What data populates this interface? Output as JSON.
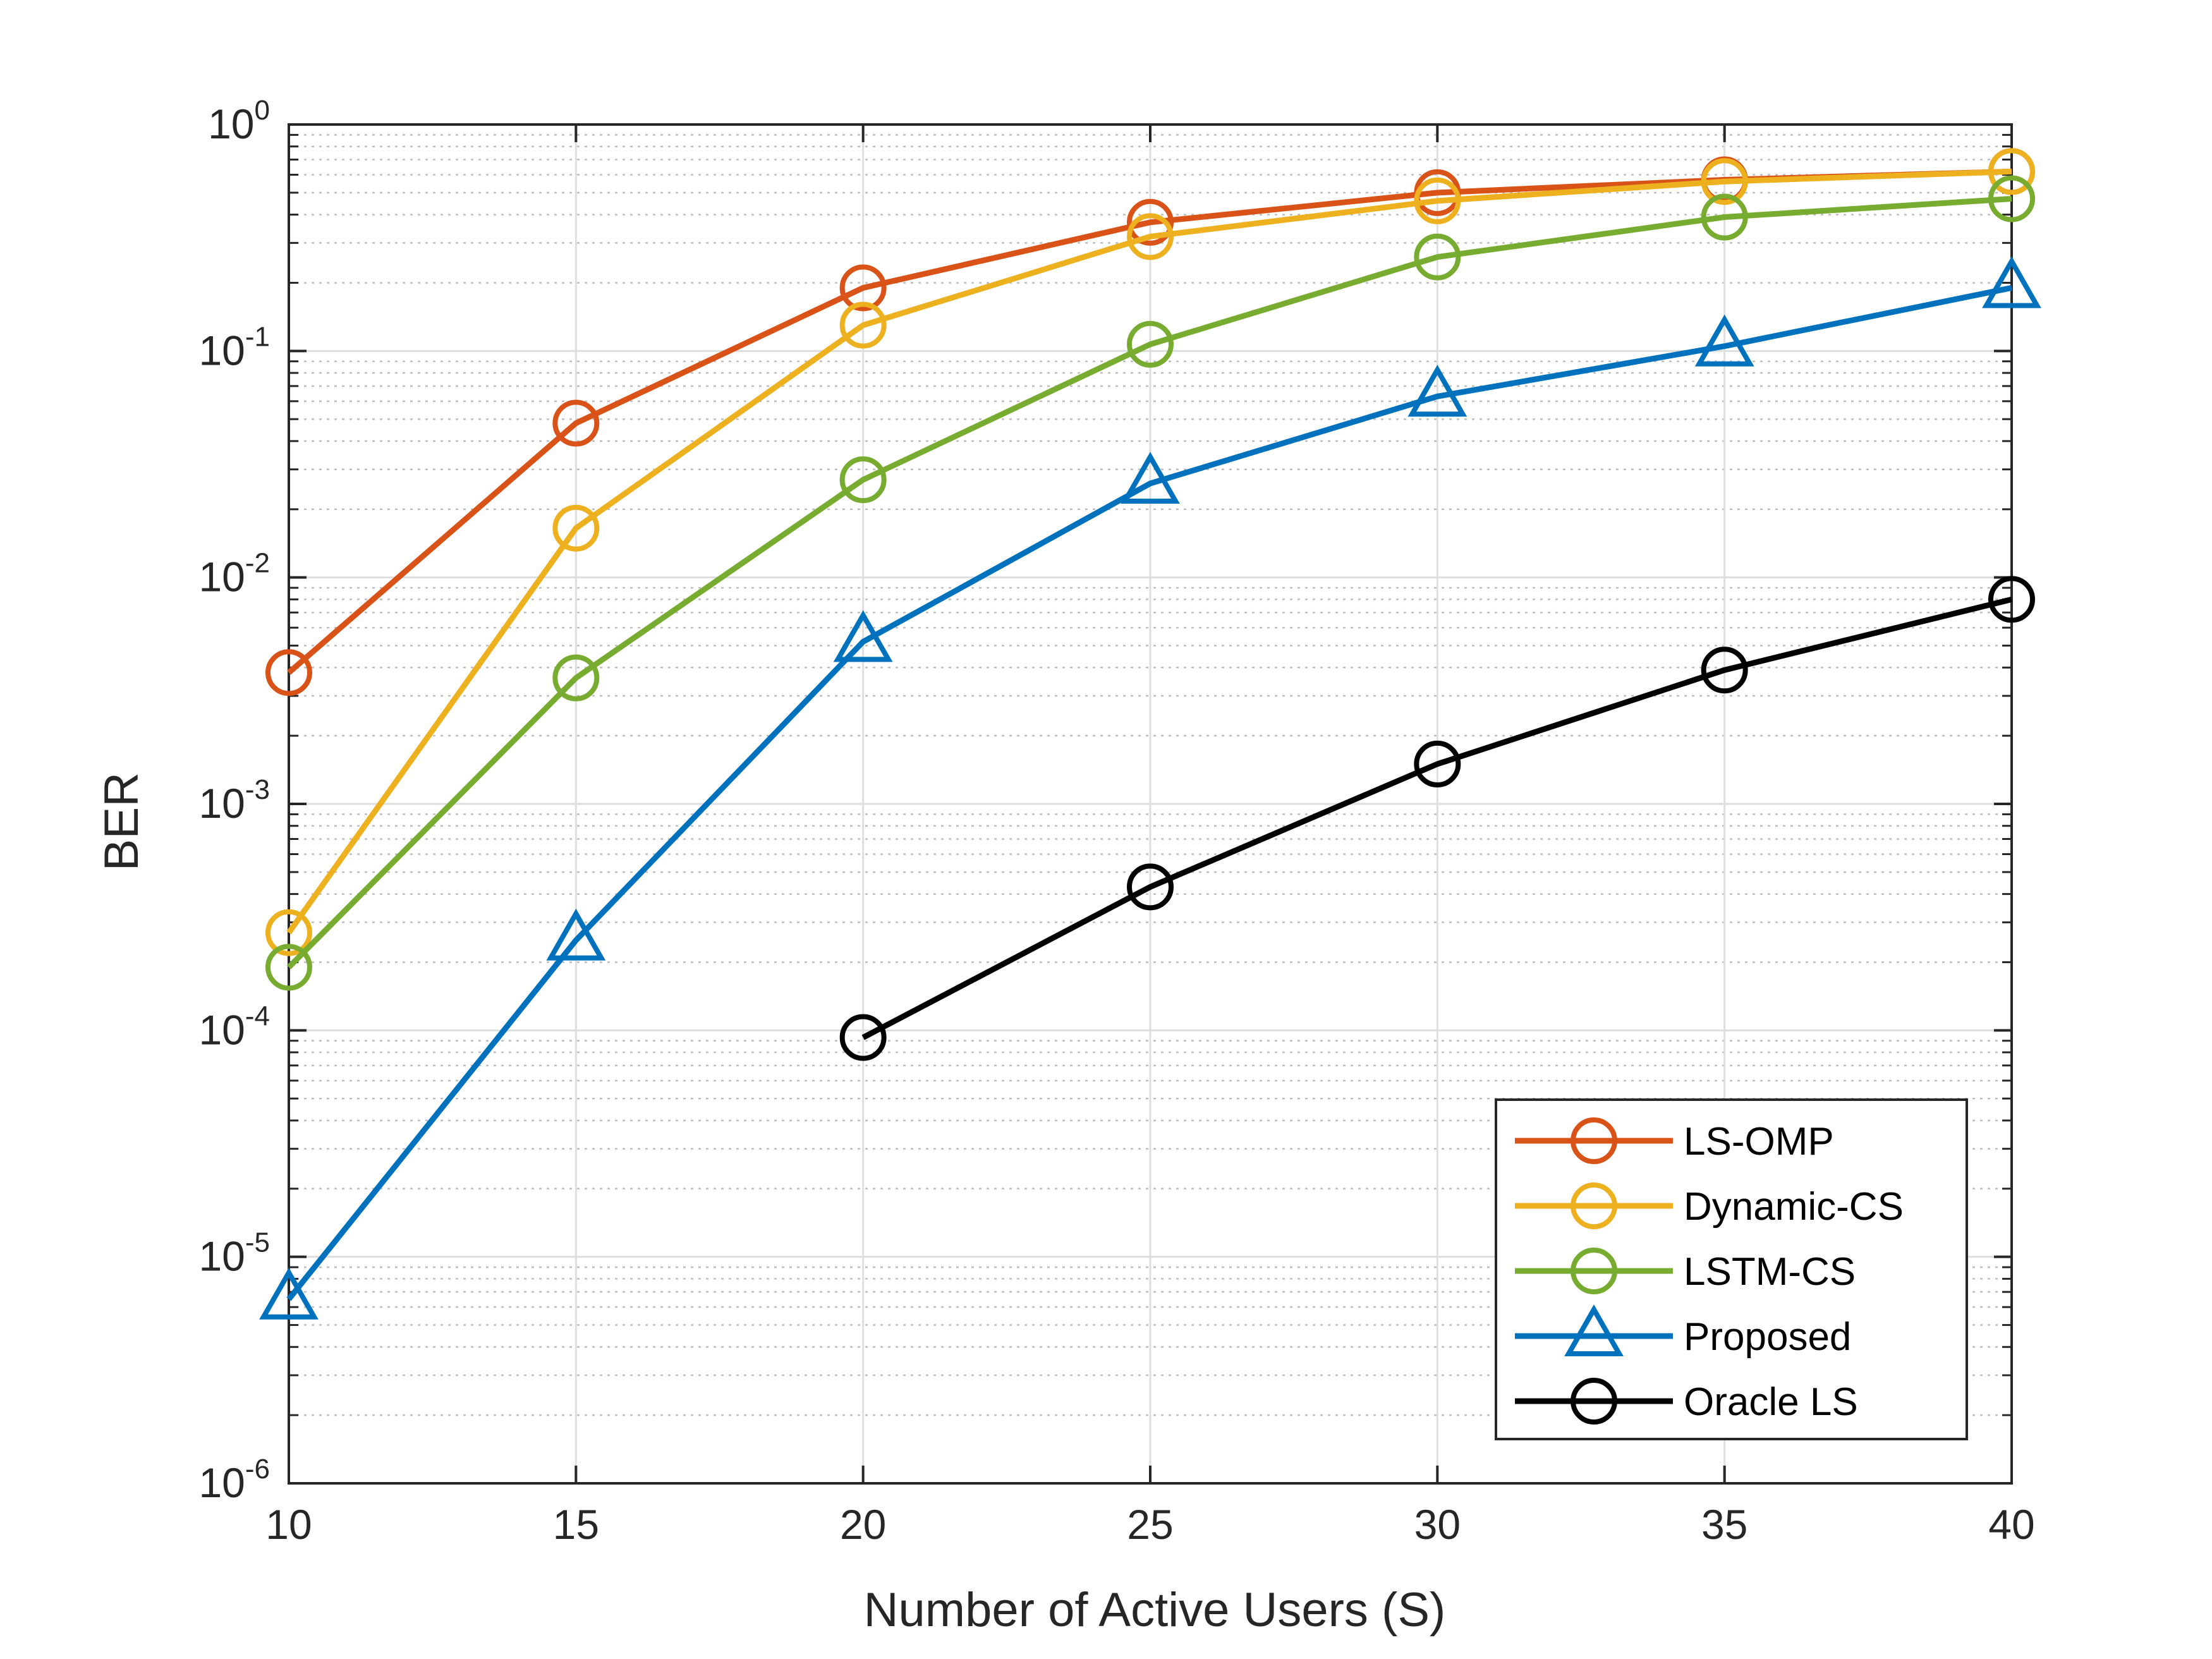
{
  "chart_data": {
    "type": "line",
    "title": "",
    "xlabel": "Number of Active Users (S)",
    "ylabel": "BER",
    "x": [
      10,
      15,
      20,
      25,
      30,
      35,
      40
    ],
    "xlim": [
      10,
      40
    ],
    "ylim": [
      1e-06,
      1
    ],
    "yscale": "log",
    "grid": true,
    "legend_position": "bottom-right",
    "x_ticks": [
      "10",
      "15",
      "20",
      "25",
      "30",
      "35",
      "40"
    ],
    "y_ticks": [
      {
        "base": "10",
        "exp": "0",
        "value": 1
      },
      {
        "base": "10",
        "exp": "-1",
        "value": 0.1
      },
      {
        "base": "10",
        "exp": "-2",
        "value": 0.01
      },
      {
        "base": "10",
        "exp": "-3",
        "value": 0.001
      },
      {
        "base": "10",
        "exp": "-4",
        "value": 0.0001
      },
      {
        "base": "10",
        "exp": "-5",
        "value": 1e-05
      },
      {
        "base": "10",
        "exp": "-6",
        "value": 1e-06
      }
    ],
    "series": [
      {
        "name": "LS-OMP",
        "color": "#D95319",
        "marker": "circle",
        "x": [
          10,
          15,
          20,
          25,
          30,
          35,
          40
        ],
        "values": [
          0.0038,
          0.048,
          0.19,
          0.37,
          0.5,
          0.57,
          0.62
        ]
      },
      {
        "name": "Dynamic-CS",
        "color": "#EDB120",
        "marker": "circle",
        "x": [
          10,
          15,
          20,
          25,
          30,
          35,
          40
        ],
        "values": [
          0.00027,
          0.0165,
          0.13,
          0.32,
          0.46,
          0.56,
          0.62
        ]
      },
      {
        "name": "LSTM-CS",
        "color": "#77AC30",
        "marker": "circle",
        "x": [
          10,
          15,
          20,
          25,
          30,
          35,
          40
        ],
        "values": [
          0.00019,
          0.0036,
          0.027,
          0.107,
          0.26,
          0.39,
          0.47
        ]
      },
      {
        "name": "Proposed",
        "color": "#0072BD",
        "marker": "triangle",
        "x": [
          10,
          15,
          20,
          25,
          30,
          35,
          40
        ],
        "values": [
          6.5e-06,
          0.00025,
          0.0052,
          0.026,
          0.063,
          0.105,
          0.19
        ]
      },
      {
        "name": "Oracle LS",
        "color": "#000000",
        "marker": "circle",
        "x": [
          20,
          25,
          30,
          35,
          40
        ],
        "values": [
          9.3e-05,
          0.00043,
          0.0015,
          0.0039,
          0.008
        ]
      }
    ]
  }
}
